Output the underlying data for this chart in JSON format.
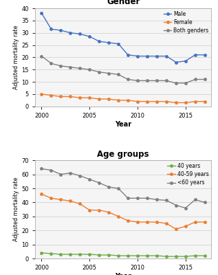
{
  "years": [
    2000,
    2001,
    2002,
    2003,
    2004,
    2005,
    2006,
    2007,
    2008,
    2009,
    2010,
    2011,
    2012,
    2013,
    2014,
    2015,
    2016,
    2017
  ],
  "male": [
    38,
    31.5,
    31,
    30,
    29.5,
    28.5,
    26.5,
    26,
    25.5,
    21,
    20.5,
    20.5,
    20.5,
    20.5,
    18,
    18.5,
    21,
    21
  ],
  "female": [
    5,
    4.5,
    4,
    4,
    3.5,
    3.5,
    3,
    3,
    2.5,
    2.5,
    2,
    2,
    2,
    2,
    1.5,
    1.5,
    2,
    2
  ],
  "both_genders": [
    20.5,
    17.5,
    16.5,
    16,
    15.5,
    15,
    14,
    13.5,
    13,
    11,
    10.5,
    10.5,
    10.5,
    10.5,
    9.5,
    9.5,
    11,
    11
  ],
  "age_young": [
    4,
    3.5,
    3,
    3,
    3,
    3,
    2.5,
    2.5,
    2,
    2,
    2,
    2,
    2,
    1.5,
    1.5,
    1.5,
    2,
    2
  ],
  "age_mid": [
    46,
    43,
    42,
    41,
    39,
    34.5,
    34.5,
    33,
    30,
    27,
    26,
    26,
    26,
    25,
    21,
    23,
    26,
    26
  ],
  "age_old": [
    64,
    63,
    60,
    61,
    59,
    56.5,
    54,
    51,
    50,
    43,
    43,
    43,
    42,
    41.5,
    38,
    36,
    42,
    40
  ],
  "male_color": "#4472c4",
  "female_color": "#ed7d31",
  "both_color": "#808080",
  "young_color": "#70ad47",
  "mid_color": "#ed7d31",
  "old_color": "#808080",
  "title1": "Gender",
  "title2": "Age groups",
  "ylabel": "Adjusted mortality rate",
  "xlabel": "Year",
  "legend1": [
    "Male",
    "Female",
    "Both genders"
  ],
  "legend2": [
    "40 years",
    "40-59 years",
    "<60 years"
  ],
  "ylim1": [
    0,
    40
  ],
  "ylim2": [
    0,
    70
  ],
  "yticks1": [
    0,
    5,
    10,
    15,
    20,
    25,
    30,
    35,
    40
  ],
  "yticks2": [
    0,
    10,
    20,
    30,
    40,
    50,
    60,
    70
  ],
  "xticks": [
    2000,
    2005,
    2010,
    2015
  ],
  "bg_color": "#ffffff",
  "panel_bg": "#f5f5f5",
  "marker": "o",
  "markersize": 2.5,
  "linewidth": 1.0
}
